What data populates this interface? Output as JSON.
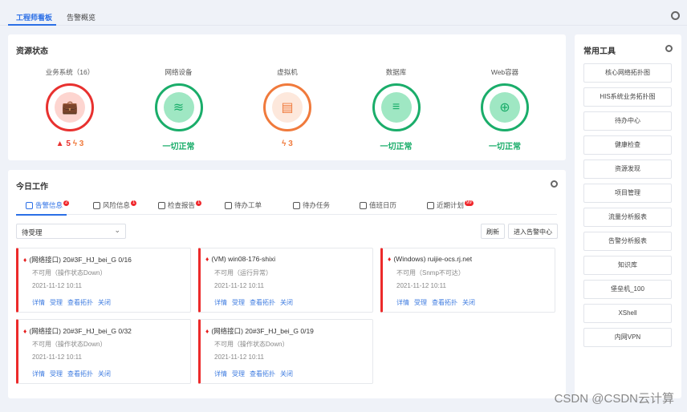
{
  "top_tabs": [
    {
      "label": "工程师看板",
      "active": true
    },
    {
      "label": "告警概览",
      "active": false
    }
  ],
  "resource": {
    "title": "资源状态",
    "items": [
      {
        "label": "业务系统（16）",
        "icon": "briefcase-icon",
        "color": "#e8312f",
        "fill": "#fdd5d0",
        "alarm": "5",
        "warn": "3"
      },
      {
        "label": "网络设备",
        "icon": "router-icon",
        "color": "#1aad6a",
        "fill": "#9fe7c3",
        "status": "一切正常"
      },
      {
        "label": "虚拟机",
        "icon": "monitor-icon",
        "color": "#f07a3c",
        "fill": "#fde8dc",
        "warn": "3"
      },
      {
        "label": "数据库",
        "icon": "database-icon",
        "color": "#1aad6a",
        "fill": "#9fe7c3",
        "status": "一切正常"
      },
      {
        "label": "Web容器",
        "icon": "globe-icon",
        "color": "#1aad6a",
        "fill": "#9fe7c3",
        "status": "一切正常"
      }
    ]
  },
  "work": {
    "title": "今日工作",
    "tabs": [
      {
        "label": "告警信息",
        "badge": "2"
      },
      {
        "label": "风险信息",
        "badge": "1"
      },
      {
        "label": "检查报告",
        "badge": "1"
      },
      {
        "label": "待办工单"
      },
      {
        "label": "待办任务"
      },
      {
        "label": "值班日历"
      },
      {
        "label": "近期计划",
        "badge": "99"
      }
    ],
    "filter": "待受理",
    "refresh": "刷新",
    "enter": "进入告警中心",
    "actions": [
      "详情",
      "受理",
      "查看拓扑",
      "关闭"
    ],
    "alerts": [
      {
        "title": "(网络接口) 20#3F_HJ_bei_G 0/16",
        "desc": "不可用（操作状态Down）",
        "time": "2021-11-12  10:11"
      },
      {
        "title": "(VM) win08-176-shixi",
        "desc": "不可用（运行异常）",
        "time": "2021-11-12  10:11"
      },
      {
        "title": "(Windows) ruijie-ocs.rj.net",
        "desc": "不可用（Snmp不可达）",
        "time": "2021-11-12  10:11"
      },
      {
        "title": "(网络接口) 20#3F_HJ_bei_G 0/32",
        "desc": "不可用（操作状态Down）",
        "time": "2021-11-12  10:11"
      },
      {
        "title": "(网络接口) 20#3F_HJ_bei_G 0/19",
        "desc": "不可用（操作状态Down）",
        "time": "2021-11-12  10:11"
      }
    ]
  },
  "tools": {
    "title": "常用工具",
    "items": [
      "核心网络拓扑图",
      "HIS系统业务拓扑图",
      "待办中心",
      "健康检查",
      "资源发现",
      "项目管理",
      "流量分析报表",
      "告警分析报表",
      "知识库",
      "堡垒机_100",
      "XShell",
      "内网VPN"
    ]
  },
  "watermark": "CSDN @CSDN云计算"
}
